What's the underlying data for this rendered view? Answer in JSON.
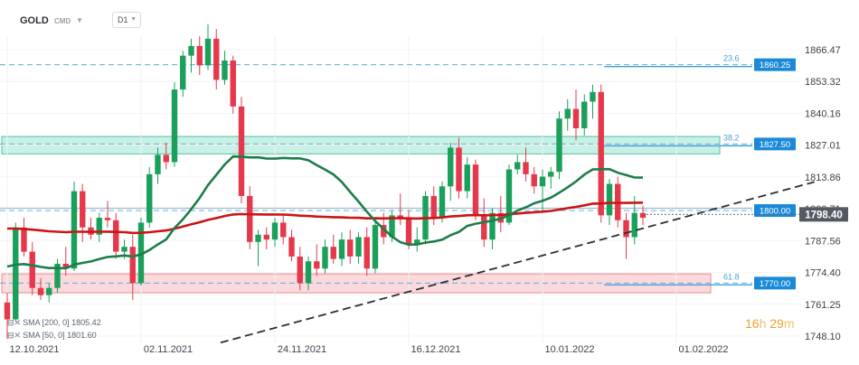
{
  "header": {
    "symbol": "GOLD",
    "source": "CMD",
    "timeframe": "D1"
  },
  "indicators": [
    {
      "label": "SMA [200, 0] 1805.42",
      "color": "#cc1414"
    },
    {
      "label": "SMA [50, 0] 1801.60",
      "color": "#1e7d4a"
    }
  ],
  "timer": {
    "h": "16",
    "h_unit": "h",
    "m": "29",
    "m_unit": "m"
  },
  "chart_data": {
    "type": "candlestick",
    "y_ticks": [
      1866.47,
      1853.32,
      1840.16,
      1827.01,
      1813.86,
      1800.71,
      1787.56,
      1774.4,
      1761.25,
      1748.1
    ],
    "ylim": [
      1745,
      1878
    ],
    "x_ticks": [
      {
        "i": 0,
        "label": "12.10.2021"
      },
      {
        "i": 16,
        "label": "02.11.2021"
      },
      {
        "i": 32,
        "label": "24.11.2021"
      },
      {
        "i": 48,
        "label": "16.12.2021"
      },
      {
        "i": 64,
        "label": "10.01.2022"
      },
      {
        "i": 80,
        "label": "01.02.2022"
      }
    ],
    "current_price": "1798.40",
    "price_labels": [
      {
        "value": 1860.25,
        "label": "1860.25",
        "fib": "23.6"
      },
      {
        "value": 1827.5,
        "label": "1827.50",
        "fib": "38.2"
      },
      {
        "value": 1800.0,
        "label": "1800.00",
        "fib": ""
      },
      {
        "value": 1770.0,
        "label": "1770.00",
        "fib": "61.8"
      }
    ],
    "zones": [
      {
        "from": 1823.4,
        "to": 1830.6,
        "color": "green"
      },
      {
        "from": 1766.0,
        "to": 1773.8,
        "color": "red"
      }
    ],
    "trendlines": [
      {
        "x1": 25.5,
        "y1": 1745.4,
        "x2": 96.5,
        "y2": 1811.8
      }
    ],
    "candles": [
      [
        1762,
        1766,
        1747,
        1755
      ],
      [
        1755,
        1795,
        1754,
        1793
      ],
      [
        1793,
        1797,
        1781,
        1783
      ],
      [
        1783,
        1787,
        1765,
        1768
      ],
      [
        1768,
        1772,
        1763,
        1765
      ],
      [
        1765,
        1770,
        1762,
        1768
      ],
      [
        1768,
        1780,
        1766,
        1778
      ],
      [
        1778,
        1785,
        1773,
        1776
      ],
      [
        1776,
        1812,
        1775,
        1808
      ],
      [
        1808,
        1811,
        1787,
        1793
      ],
      [
        1793,
        1797,
        1788,
        1790
      ],
      [
        1790,
        1799,
        1787,
        1797
      ],
      [
        1797,
        1804,
        1793,
        1796
      ],
      [
        1796,
        1799,
        1780,
        1783
      ],
      [
        1783,
        1788,
        1780,
        1785
      ],
      [
        1785,
        1790,
        1763,
        1770
      ],
      [
        1770,
        1797,
        1769,
        1795
      ],
      [
        1795,
        1818,
        1793,
        1815
      ],
      [
        1815,
        1826,
        1811,
        1823
      ],
      [
        1823,
        1828,
        1817,
        1820
      ],
      [
        1820,
        1853,
        1818,
        1850
      ],
      [
        1850,
        1866,
        1847,
        1864
      ],
      [
        1864,
        1871,
        1857,
        1868
      ],
      [
        1868,
        1872,
        1856,
        1860
      ],
      [
        1860,
        1877,
        1858,
        1871
      ],
      [
        1871,
        1875,
        1850,
        1854
      ],
      [
        1854,
        1866,
        1852,
        1862
      ],
      [
        1862,
        1864,
        1840,
        1843
      ],
      [
        1843,
        1847,
        1803,
        1806
      ],
      [
        1806,
        1810,
        1784,
        1787
      ],
      [
        1787,
        1792,
        1777,
        1790
      ],
      [
        1790,
        1793,
        1784,
        1788
      ],
      [
        1788,
        1797,
        1785,
        1795
      ],
      [
        1795,
        1798,
        1786,
        1789
      ],
      [
        1789,
        1792,
        1779,
        1781
      ],
      [
        1781,
        1785,
        1767,
        1770
      ],
      [
        1770,
        1781,
        1767,
        1779
      ],
      [
        1779,
        1786,
        1773,
        1776
      ],
      [
        1776,
        1788,
        1774,
        1785
      ],
      [
        1785,
        1790,
        1778,
        1780
      ],
      [
        1780,
        1791,
        1777,
        1788
      ],
      [
        1788,
        1792,
        1778,
        1781
      ],
      [
        1781,
        1791,
        1778,
        1789
      ],
      [
        1789,
        1793,
        1773,
        1776
      ],
      [
        1776,
        1796,
        1774,
        1794
      ],
      [
        1794,
        1799,
        1786,
        1789
      ],
      [
        1789,
        1800,
        1787,
        1798
      ],
      [
        1798,
        1807,
        1794,
        1797
      ],
      [
        1797,
        1800,
        1784,
        1786
      ],
      [
        1786,
        1793,
        1783,
        1788
      ],
      [
        1788,
        1808,
        1786,
        1806
      ],
      [
        1806,
        1810,
        1794,
        1797
      ],
      [
        1797,
        1812,
        1795,
        1810
      ],
      [
        1810,
        1828,
        1804,
        1826
      ],
      [
        1826,
        1830,
        1805,
        1808
      ],
      [
        1808,
        1822,
        1805,
        1819
      ],
      [
        1819,
        1821,
        1796,
        1798
      ],
      [
        1798,
        1805,
        1785,
        1788
      ],
      [
        1788,
        1801,
        1784,
        1799
      ],
      [
        1799,
        1806,
        1791,
        1795
      ],
      [
        1795,
        1819,
        1794,
        1817
      ],
      [
        1817,
        1823,
        1815,
        1820
      ],
      [
        1820,
        1826,
        1812,
        1815
      ],
      [
        1815,
        1818,
        1807,
        1810
      ],
      [
        1810,
        1817,
        1800,
        1814
      ],
      [
        1814,
        1818,
        1809,
        1816
      ],
      [
        1816,
        1841,
        1813,
        1838
      ],
      [
        1838,
        1846,
        1833,
        1842
      ],
      [
        1842,
        1850,
        1829,
        1834
      ],
      [
        1834,
        1848,
        1831,
        1845
      ],
      [
        1845,
        1852,
        1838,
        1849
      ],
      [
        1849,
        1852,
        1795,
        1798
      ],
      [
        1798,
        1813,
        1794,
        1811
      ],
      [
        1811,
        1814,
        1793,
        1796
      ],
      [
        1796,
        1799,
        1780,
        1789
      ],
      [
        1789,
        1806,
        1786,
        1799
      ],
      [
        1799,
        1802,
        1794,
        1797
      ]
    ]
  }
}
